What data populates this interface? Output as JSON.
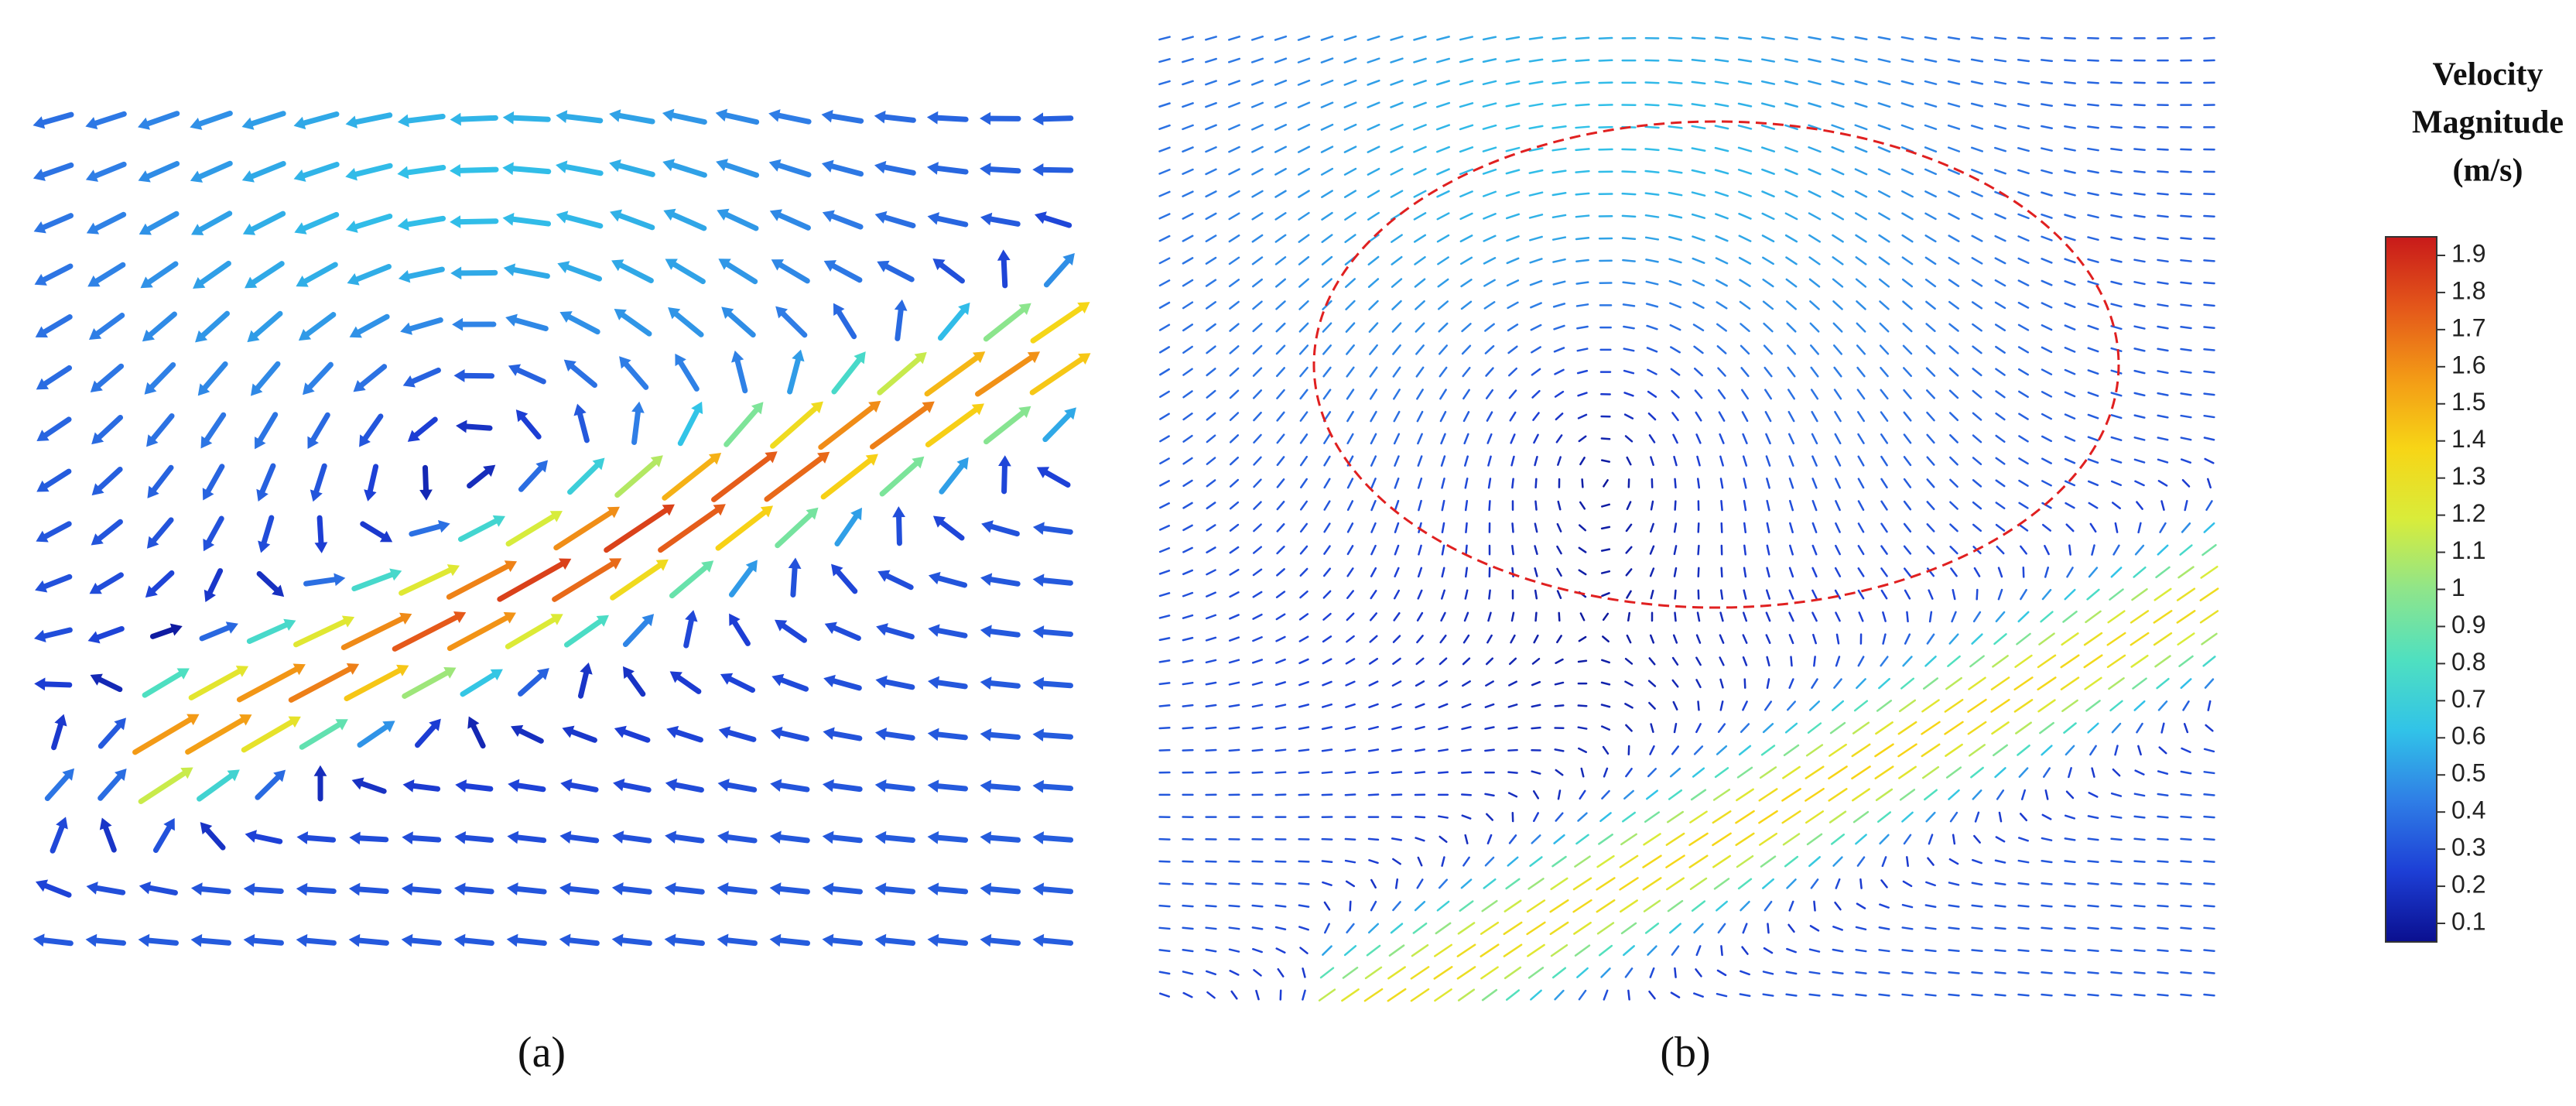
{
  "panels": [
    {
      "label": "(a)"
    },
    {
      "label": "(b)"
    }
  ],
  "colorbar": {
    "title_lines": [
      "Velocity",
      "Magnitude",
      "(m/s)"
    ],
    "lim": [
      0.05,
      1.95
    ],
    "ticks": [
      0.1,
      0.2,
      0.3,
      0.4,
      0.5,
      0.6,
      0.7,
      0.8,
      0.9,
      1,
      1.1,
      1.2,
      1.3,
      1.4,
      1.5,
      1.6,
      1.7,
      1.8,
      1.9
    ],
    "colors": [
      "#0a0f8f",
      "#1d3fd6",
      "#2f7ee6",
      "#31c3e8",
      "#4fe0c0",
      "#8fe58a",
      "#d9ec3a",
      "#f7d516",
      "#f39a16",
      "#e4571a",
      "#c81a1a"
    ]
  }
}
